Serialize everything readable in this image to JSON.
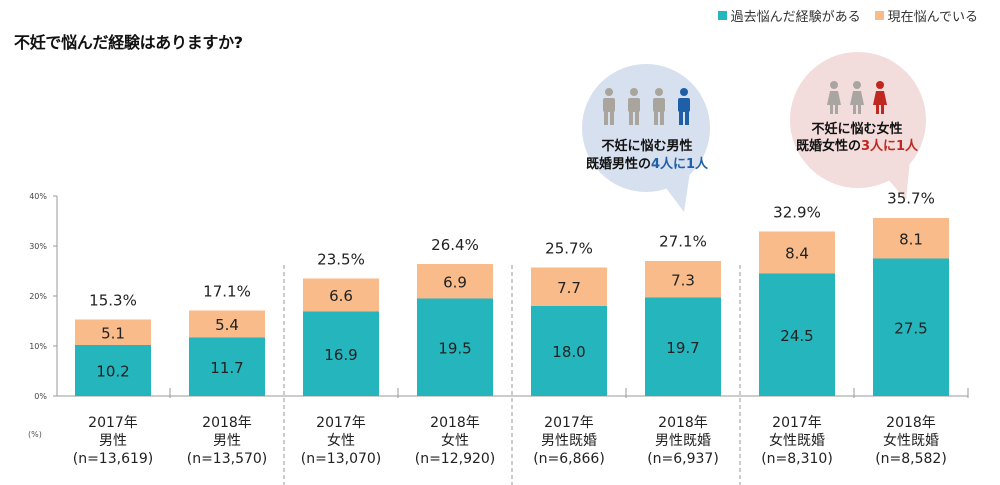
{
  "title": "不妊で悩んだ経験はありますか?",
  "legend": [
    {
      "label": "過去悩んだ経験がある",
      "color": "#25b5bd"
    },
    {
      "label": "現在悩んでいる",
      "color": "#f9bb8a"
    }
  ],
  "callouts": [
    {
      "line1": "不妊に悩む男性",
      "line2_prefix": "既婚男性の",
      "line2_highlight": "4人に1人",
      "highlight_color": "#1f5fa8",
      "bubble_color": "#d6e0ee",
      "icon": "male-figure-icon",
      "figures_total": 4,
      "figures_highlighted": 1
    },
    {
      "line1": "不妊に悩む女性",
      "line2_prefix": "既婚女性の",
      "line2_highlight": "3人に1人",
      "highlight_color": "#c0281f",
      "bubble_color": "#f2dcdc",
      "icon": "female-figure-icon",
      "figures_total": 3,
      "figures_highlighted": 1
    }
  ],
  "chart_data": {
    "type": "bar",
    "stacked": true,
    "title": "不妊で悩んだ経験はありますか?",
    "ylabel_unit": "(%)",
    "ylim": [
      0,
      40
    ],
    "yticks": [
      "0%",
      "10%",
      "20%",
      "30%",
      "40%"
    ],
    "ytick_values": [
      0,
      10,
      20,
      30,
      40
    ],
    "categories": [
      {
        "year": "2017年",
        "group": "男性",
        "n": "(n=13,619)"
      },
      {
        "year": "2018年",
        "group": "男性",
        "n": "(n=13,570)"
      },
      {
        "year": "2017年",
        "group": "女性",
        "n": "(n=13,070)"
      },
      {
        "year": "2018年",
        "group": "女性",
        "n": "(n=12,920)"
      },
      {
        "year": "2017年",
        "group": "男性既婚",
        "n": "(n=6,866)"
      },
      {
        "year": "2018年",
        "group": "男性既婚",
        "n": "(n=6,937)"
      },
      {
        "year": "2017年",
        "group": "女性既婚",
        "n": "(n=8,310)"
      },
      {
        "year": "2018年",
        "group": "女性既婚",
        "n": "(n=8,582)"
      }
    ],
    "series": [
      {
        "name": "過去悩んだ経験がある",
        "color": "#25b5bd",
        "values": [
          10.2,
          11.7,
          16.9,
          19.5,
          18.0,
          19.7,
          24.5,
          27.5
        ],
        "labels": [
          "10.2",
          "11.7",
          "16.9",
          "19.5",
          "18.0",
          "19.7",
          "24.5",
          "27.5"
        ]
      },
      {
        "name": "現在悩んでいる",
        "color": "#f9bb8a",
        "values": [
          5.1,
          5.4,
          6.6,
          6.9,
          7.7,
          7.3,
          8.4,
          8.1
        ],
        "labels": [
          "5.1",
          "5.4",
          "6.6",
          "6.9",
          "7.7",
          "7.3",
          "8.4",
          "8.1"
        ]
      }
    ],
    "totals": [
      15.3,
      17.1,
      23.5,
      26.4,
      25.7,
      27.1,
      32.9,
      35.7
    ],
    "total_labels": [
      "15.3%",
      "17.1%",
      "23.5%",
      "26.4%",
      "25.7%",
      "27.1%",
      "32.9%",
      "35.7%"
    ],
    "group_separators_after": [
      2,
      4,
      6
    ],
    "legend_position": "top-right",
    "grid": false
  }
}
